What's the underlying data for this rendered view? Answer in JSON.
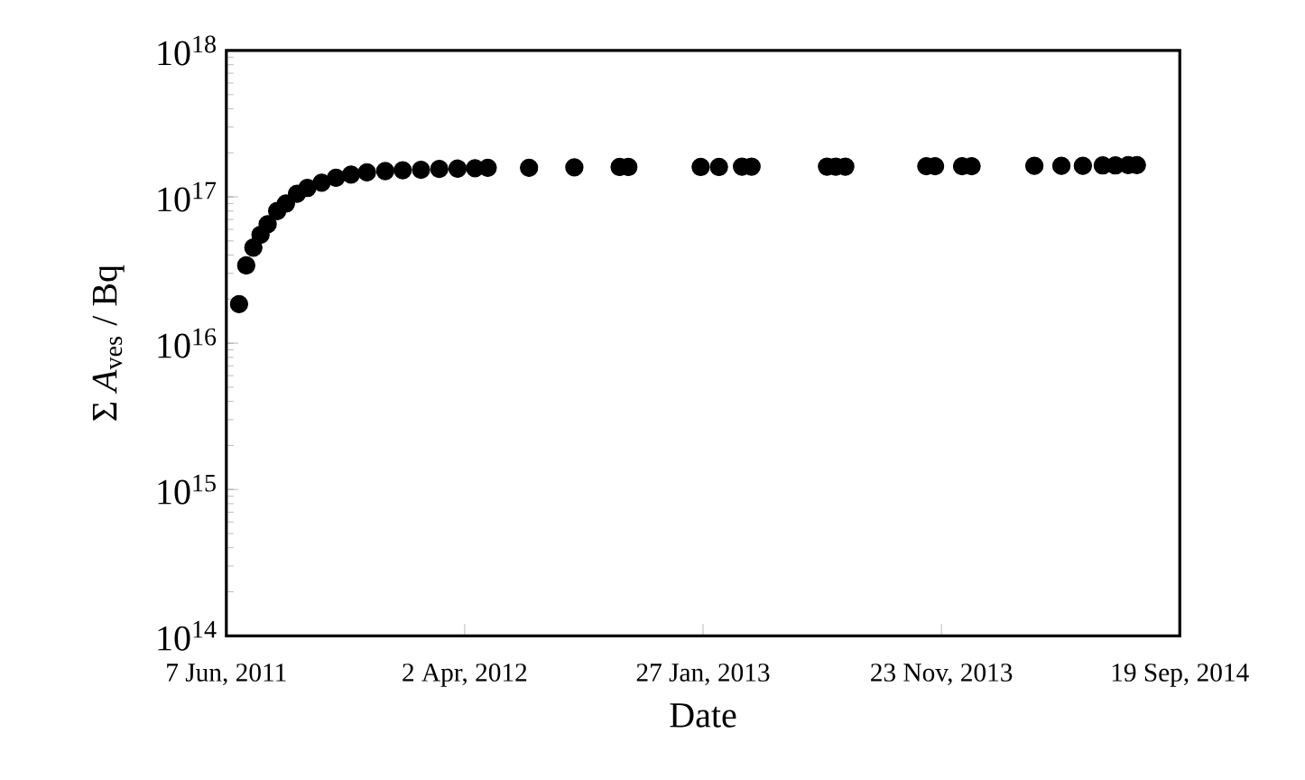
{
  "chart_data": {
    "type": "scatter",
    "xlabel": "Date",
    "ylabel": "Σ *A*$_{ves}$ / Bq",
    "log": "y",
    "marker": "circle",
    "color": "#000000",
    "x": [
      "2011-06-23",
      "2011-07-02",
      "2011-07-11",
      "2011-07-20",
      "2011-07-29",
      "2011-08-10",
      "2011-08-21",
      "2011-09-04",
      "2011-09-17",
      "2011-10-05",
      "2011-10-23",
      "2011-11-11",
      "2011-12-01",
      "2011-12-24",
      "2012-01-15",
      "2012-02-07",
      "2012-03-01",
      "2012-03-24",
      "2012-04-15",
      "2012-05-01",
      "2012-06-22",
      "2012-08-18",
      "2012-10-14",
      "2012-10-25",
      "2013-01-24",
      "2013-02-16",
      "2013-03-17",
      "2013-03-29",
      "2013-07-02",
      "2013-07-13",
      "2013-07-25",
      "2013-11-04",
      "2013-11-15",
      "2013-12-19",
      "2013-12-31",
      "2014-03-20",
      "2014-04-23",
      "2014-05-20",
      "2014-06-14",
      "2014-06-30",
      "2014-07-16",
      "2014-07-27"
    ],
    "values": [
      1.85e+16,
      3.4e+16,
      4.5e+16,
      5.5e+16,
      6.5e+16,
      8e+16,
      9e+16,
      1.05e+17,
      1.15e+17,
      1.25e+17,
      1.35e+17,
      1.42e+17,
      1.47e+17,
      1.5e+17,
      1.52e+17,
      1.53e+17,
      1.55e+17,
      1.56e+17,
      1.57e+17,
      1.58e+17,
      1.58e+17,
      1.59e+17,
      1.6e+17,
      1.6e+17,
      1.6e+17,
      1.6e+17,
      1.61e+17,
      1.61e+17,
      1.61e+17,
      1.61e+17,
      1.61e+17,
      1.62e+17,
      1.62e+17,
      1.62e+17,
      1.62e+17,
      1.63e+17,
      1.63e+17,
      1.63e+17,
      1.64e+17,
      1.64e+17,
      1.65e+17,
      1.65e+17
    ],
    "xlim": [
      "2011-06-07",
      "2014-09-19"
    ],
    "xticks": [
      {
        "value": "2011-06-07",
        "label": "7 Jun, 2011"
      },
      {
        "value": "2012-04-02",
        "label": "2 Apr, 2012"
      },
      {
        "value": "2013-01-27",
        "label": "27 Jan, 2013"
      },
      {
        "value": "2013-11-23",
        "label": "23 Nov, 2013"
      },
      {
        "value": "2014-09-19",
        "label": "19 Sep, 2014"
      }
    ],
    "ylim": [
      100000000000000.0,
      1e+18
    ],
    "yticks": [
      {
        "value": 100000000000000.0,
        "label": "10$^{14}$"
      },
      {
        "value": 1000000000000000.0,
        "label": "10$^{15}$"
      },
      {
        "value": 1e+16,
        "label": "10$^{16}$"
      },
      {
        "value": 1e+17,
        "label": "10$^{17}$"
      },
      {
        "value": 1e+18,
        "label": "10$^{18}$"
      }
    ]
  }
}
